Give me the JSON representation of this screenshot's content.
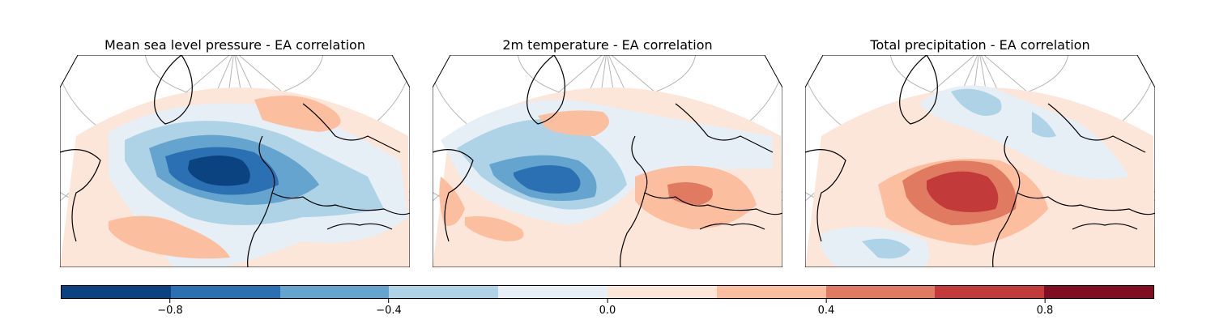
{
  "panels": [
    {
      "title": "Mean sea level pressure - EA correlation",
      "variable": "mslp"
    },
    {
      "title": "2m temperature - EA correlation",
      "variable": "t2m"
    },
    {
      "title": "Total precipitation - EA correlation",
      "variable": "tp"
    }
  ],
  "colorbar": {
    "levels": [
      -1.0,
      -0.8,
      -0.6,
      -0.4,
      -0.2,
      0.0,
      0.2,
      0.4,
      0.6,
      0.8,
      1.0
    ],
    "colors": [
      "#0b4380",
      "#2a70b3",
      "#65a4cf",
      "#aed2e6",
      "#e6eef6",
      "#fce6da",
      "#fbbfa0",
      "#e07b61",
      "#c23a3a",
      "#800d22"
    ],
    "tick_values": [
      -0.8,
      -0.4,
      0.0,
      0.4,
      0.8
    ],
    "tick_labels": [
      "−0.8",
      "−0.4",
      "0.0",
      "0.4",
      "0.8"
    ]
  }
}
